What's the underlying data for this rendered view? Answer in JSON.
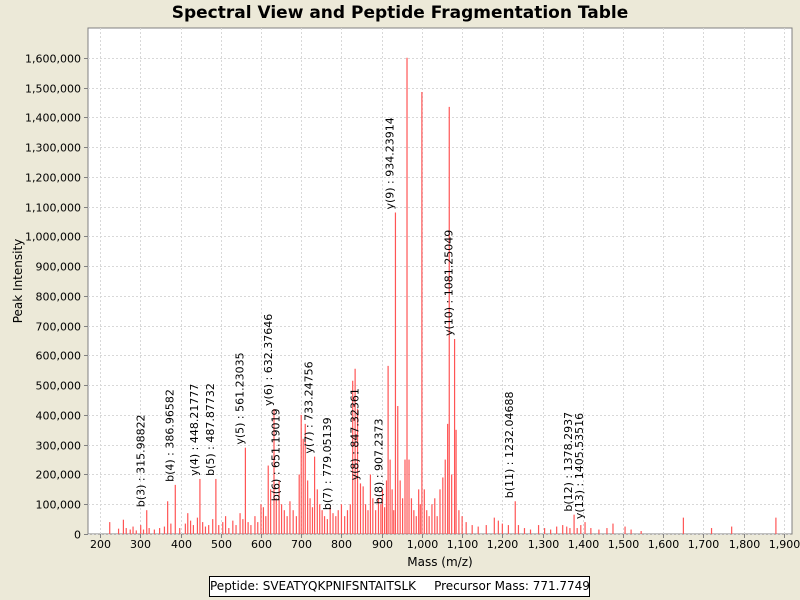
{
  "chart_data": {
    "type": "bar",
    "title": "Spectral View and Peptide Fragmentation Table",
    "xlabel": "Mass (m/z)",
    "ylabel": "Peak Intensity",
    "xlim": [
      170,
      1920
    ],
    "ylim": [
      0,
      1700000
    ],
    "x_ticks": [
      200,
      300,
      400,
      500,
      600,
      700,
      800,
      900,
      1000,
      1100,
      1200,
      1300,
      1400,
      1500,
      1600,
      1700,
      1800,
      1900
    ],
    "x_tick_labels": [
      "200",
      "300",
      "400",
      "500",
      "600",
      "700",
      "800",
      "900",
      "1,000",
      "1,100",
      "1,200",
      "1,300",
      "1,400",
      "1,500",
      "1,600",
      "1,700",
      "1,800",
      "1,900"
    ],
    "y_ticks": [
      0,
      100000,
      200000,
      300000,
      400000,
      500000,
      600000,
      700000,
      800000,
      900000,
      1000000,
      1100000,
      1200000,
      1300000,
      1400000,
      1500000,
      1600000
    ],
    "y_tick_labels": [
      "0",
      "100,000",
      "200,000",
      "300,000",
      "400,000",
      "500,000",
      "600,000",
      "700,000",
      "800,000",
      "900,000",
      "1,000,000",
      "1,100,000",
      "1,200,000",
      "1,300,000",
      "1,400,000",
      "1,500,000",
      "1,600,000"
    ],
    "grid": true,
    "series_color": "#ff5555",
    "peaks": [
      [
        224,
        40000
      ],
      [
        246,
        18000
      ],
      [
        258,
        48000
      ],
      [
        265,
        20000
      ],
      [
        275,
        15000
      ],
      [
        282,
        25000
      ],
      [
        290,
        12000
      ],
      [
        301,
        30000
      ],
      [
        308,
        15000
      ],
      [
        315.98822,
        80000
      ],
      [
        322,
        20000
      ],
      [
        335,
        15000
      ],
      [
        348,
        20000
      ],
      [
        360,
        25000
      ],
      [
        368,
        110000
      ],
      [
        376,
        35000
      ],
      [
        386.96582,
        165000
      ],
      [
        398,
        20000
      ],
      [
        412,
        35000
      ],
      [
        418,
        70000
      ],
      [
        425,
        45000
      ],
      [
        432,
        30000
      ],
      [
        442,
        55000
      ],
      [
        448.21777,
        185000
      ],
      [
        455,
        40000
      ],
      [
        462,
        25000
      ],
      [
        470,
        30000
      ],
      [
        480,
        50000
      ],
      [
        487.87732,
        185000
      ],
      [
        495,
        30000
      ],
      [
        505,
        40000
      ],
      [
        512,
        60000
      ],
      [
        520,
        20000
      ],
      [
        530,
        45000
      ],
      [
        538,
        30000
      ],
      [
        548,
        70000
      ],
      [
        555,
        50000
      ],
      [
        561.23035,
        290000
      ],
      [
        568,
        40000
      ],
      [
        575,
        30000
      ],
      [
        585,
        60000
      ],
      [
        592,
        40000
      ],
      [
        600,
        100000
      ],
      [
        606,
        90000
      ],
      [
        612,
        60000
      ],
      [
        618,
        230000
      ],
      [
        624,
        150000
      ],
      [
        632.37646,
        420000
      ],
      [
        638,
        120000
      ],
      [
        645,
        180000
      ],
      [
        651.19019,
        100000
      ],
      [
        658,
        80000
      ],
      [
        665,
        60000
      ],
      [
        672,
        110000
      ],
      [
        680,
        80000
      ],
      [
        688,
        60000
      ],
      [
        695,
        200000
      ],
      [
        700,
        400000
      ],
      [
        705,
        320000
      ],
      [
        710,
        370000
      ],
      [
        716,
        180000
      ],
      [
        722,
        120000
      ],
      [
        728,
        90000
      ],
      [
        733.24756,
        260000
      ],
      [
        740,
        150000
      ],
      [
        746,
        100000
      ],
      [
        752,
        80000
      ],
      [
        758,
        60000
      ],
      [
        765,
        50000
      ],
      [
        772,
        90000
      ],
      [
        779.05139,
        70000
      ],
      [
        786,
        60000
      ],
      [
        792,
        80000
      ],
      [
        800,
        100000
      ],
      [
        808,
        60000
      ],
      [
        815,
        80000
      ],
      [
        822,
        100000
      ],
      [
        828,
        515000
      ],
      [
        834,
        555000
      ],
      [
        840,
        420000
      ],
      [
        847.32361,
        170000
      ],
      [
        854,
        160000
      ],
      [
        860,
        100000
      ],
      [
        866,
        80000
      ],
      [
        872,
        200000
      ],
      [
        878,
        120000
      ],
      [
        885,
        80000
      ],
      [
        892,
        120000
      ],
      [
        898,
        100000
      ],
      [
        902,
        150000
      ],
      [
        907.2373,
        90000
      ],
      [
        912,
        180000
      ],
      [
        916,
        565000
      ],
      [
        921,
        250000
      ],
      [
        926,
        150000
      ],
      [
        930,
        80000
      ],
      [
        934.23914,
        1080000
      ],
      [
        940,
        430000
      ],
      [
        946,
        180000
      ],
      [
        952,
        120000
      ],
      [
        958,
        250000
      ],
      [
        963,
        1600000
      ],
      [
        968,
        250000
      ],
      [
        974,
        120000
      ],
      [
        980,
        80000
      ],
      [
        986,
        60000
      ],
      [
        992,
        150000
      ],
      [
        996,
        100000
      ],
      [
        1000,
        1485000
      ],
      [
        1006,
        150000
      ],
      [
        1012,
        80000
      ],
      [
        1018,
        60000
      ],
      [
        1025,
        100000
      ],
      [
        1032,
        120000
      ],
      [
        1038,
        60000
      ],
      [
        1045,
        150000
      ],
      [
        1052,
        190000
      ],
      [
        1058,
        250000
      ],
      [
        1064,
        370000
      ],
      [
        1068,
        1435000
      ],
      [
        1074,
        200000
      ],
      [
        1081.25049,
        655000
      ],
      [
        1085,
        350000
      ],
      [
        1092,
        80000
      ],
      [
        1100,
        60000
      ],
      [
        1110,
        40000
      ],
      [
        1125,
        30000
      ],
      [
        1140,
        25000
      ],
      [
        1160,
        30000
      ],
      [
        1180,
        55000
      ],
      [
        1190,
        45000
      ],
      [
        1200,
        35000
      ],
      [
        1215,
        30000
      ],
      [
        1232.04688,
        110000
      ],
      [
        1240,
        30000
      ],
      [
        1255,
        20000
      ],
      [
        1270,
        15000
      ],
      [
        1290,
        30000
      ],
      [
        1305,
        20000
      ],
      [
        1320,
        15000
      ],
      [
        1335,
        25000
      ],
      [
        1350,
        30000
      ],
      [
        1360,
        25000
      ],
      [
        1368,
        20000
      ],
      [
        1378.2937,
        65000
      ],
      [
        1386,
        20000
      ],
      [
        1395,
        30000
      ],
      [
        1405.53516,
        40000
      ],
      [
        1420,
        20000
      ],
      [
        1440,
        15000
      ],
      [
        1460,
        20000
      ],
      [
        1475,
        35000
      ],
      [
        1505,
        25000
      ],
      [
        1520,
        15000
      ],
      [
        1545,
        10000
      ],
      [
        1650,
        55000
      ],
      [
        1720,
        20000
      ],
      [
        1770,
        25000
      ],
      [
        1880,
        55000
      ]
    ],
    "annotations": [
      {
        "label": "b(3) : 315.98822",
        "x": 315.98822,
        "y": 80000
      },
      {
        "label": "b(4) : 386.96582",
        "x": 386.96582,
        "y": 165000
      },
      {
        "label": "y(4) : 448.21777",
        "x": 448.21777,
        "y": 185000
      },
      {
        "label": "b(5) : 487.87732",
        "x": 487.87732,
        "y": 185000
      },
      {
        "label": "y(5) : 561.23035",
        "x": 561.23035,
        "y": 290000
      },
      {
        "label": "y(6) : 632.37646",
        "x": 632.37646,
        "y": 420000
      },
      {
        "label": "b(6) : 651.19019",
        "x": 651.19019,
        "y": 100000
      },
      {
        "label": "y(7) : 733.24756",
        "x": 733.24756,
        "y": 260000
      },
      {
        "label": "b(7) : 779.05139",
        "x": 779.05139,
        "y": 70000
      },
      {
        "label": "y(8) : 847.32361",
        "x": 847.32361,
        "y": 170000
      },
      {
        "label": "b(8) : 907.2373",
        "x": 907.2373,
        "y": 90000
      },
      {
        "label": "y(9) : 934.23914",
        "x": 934.23914,
        "y": 1080000
      },
      {
        "label": "y(10) : 1081.25049",
        "x": 1081.25049,
        "y": 655000
      },
      {
        "label": "b(11) : 1232.04688",
        "x": 1232.04688,
        "y": 110000
      },
      {
        "label": "b(12) : 1378.2937",
        "x": 1378.2937,
        "y": 65000
      },
      {
        "label": "y(13) : 1405.53516",
        "x": 1405.53516,
        "y": 40000
      }
    ]
  },
  "footer": {
    "peptide_label": "Peptide: SVEATYQKPNIFSNTAITSLK",
    "precursor_label": "Precursor Mass: 771.7749"
  }
}
